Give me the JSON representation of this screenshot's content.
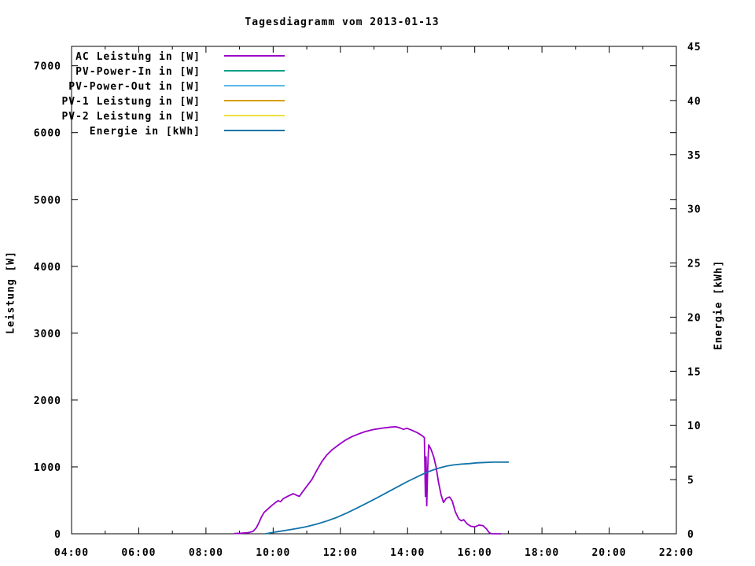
{
  "colors": {
    "background": "#ffffff",
    "axis": "#000000",
    "ac": "#9A00C8",
    "pv_power_in": "#009E86",
    "pv_power_out": "#5CB8E6",
    "pv1": "#D89E00",
    "pv2": "#EDE13F",
    "energie": "#1273AA"
  },
  "chart_data": {
    "type": "line",
    "title": "Tagesdiagramm vom 2013-01-13",
    "xlabel": "",
    "ylabel_left": "Leistung [W]",
    "ylabel_right": "Energie [kWh]",
    "grid": false,
    "legend_position": "top-left-inside",
    "x_axis": {
      "start_hour": 4,
      "end_hour": 22,
      "major_tick_hours": [
        4,
        6,
        8,
        10,
        12,
        14,
        16,
        18,
        20,
        22
      ],
      "major_tick_labels": [
        "04:00",
        "06:00",
        "08:00",
        "10:00",
        "12:00",
        "14:00",
        "16:00",
        "18:00",
        "20:00",
        "22:00"
      ],
      "minor_tick_every_hours": 1
    },
    "y_left": {
      "lim": [
        0,
        7290
      ],
      "ticks": [
        0,
        1000,
        2000,
        3000,
        4000,
        5000,
        6000,
        7000
      ]
    },
    "y_right": {
      "lim": [
        0,
        45
      ],
      "ticks": [
        0,
        5,
        10,
        15,
        20,
        25,
        30,
        35,
        40,
        45
      ]
    },
    "legend": [
      {
        "label": "AC Leistung in [W]",
        "color": "#9A00C8"
      },
      {
        "label": "PV-Power-In in [W]",
        "color": "#009E86"
      },
      {
        "label": "PV-Power-Out in [W]",
        "color": "#5CB8E6"
      },
      {
        "label": "PV-1 Leistung in [W]",
        "color": "#D89E00"
      },
      {
        "label": "PV-2 Leistung in [W]",
        "color": "#EDE13F"
      },
      {
        "label": "Energie in [kWh]",
        "color": "#1273AA"
      }
    ],
    "series": [
      {
        "name": "AC Leistung in [W]",
        "axis": "left",
        "color": "#9A00C8",
        "points": [
          [
            8.85,
            5
          ],
          [
            9.05,
            8
          ],
          [
            9.25,
            15
          ],
          [
            9.4,
            35
          ],
          [
            9.5,
            90
          ],
          [
            9.58,
            170
          ],
          [
            9.65,
            250
          ],
          [
            9.73,
            320
          ],
          [
            9.82,
            360
          ],
          [
            9.95,
            420
          ],
          [
            10.05,
            460
          ],
          [
            10.15,
            495
          ],
          [
            10.22,
            480
          ],
          [
            10.3,
            525
          ],
          [
            10.45,
            565
          ],
          [
            10.6,
            600
          ],
          [
            10.7,
            575
          ],
          [
            10.78,
            560
          ],
          [
            10.88,
            630
          ],
          [
            11.0,
            710
          ],
          [
            11.15,
            810
          ],
          [
            11.3,
            950
          ],
          [
            11.45,
            1080
          ],
          [
            11.6,
            1180
          ],
          [
            11.75,
            1255
          ],
          [
            11.95,
            1330
          ],
          [
            12.15,
            1400
          ],
          [
            12.35,
            1455
          ],
          [
            12.55,
            1495
          ],
          [
            12.75,
            1530
          ],
          [
            13.0,
            1560
          ],
          [
            13.25,
            1580
          ],
          [
            13.5,
            1595
          ],
          [
            13.65,
            1600
          ],
          [
            13.78,
            1583
          ],
          [
            13.88,
            1562
          ],
          [
            13.98,
            1578
          ],
          [
            14.12,
            1550
          ],
          [
            14.28,
            1515
          ],
          [
            14.42,
            1472
          ],
          [
            14.5,
            1438
          ],
          [
            14.53,
            560
          ],
          [
            14.55,
            1150
          ],
          [
            14.57,
            420
          ],
          [
            14.6,
            1000
          ],
          [
            14.63,
            1330
          ],
          [
            14.7,
            1262
          ],
          [
            14.78,
            1150
          ],
          [
            14.85,
            1000
          ],
          [
            14.92,
            775
          ],
          [
            15.0,
            580
          ],
          [
            15.07,
            468
          ],
          [
            15.15,
            530
          ],
          [
            15.25,
            550
          ],
          [
            15.33,
            492
          ],
          [
            15.42,
            330
          ],
          [
            15.52,
            225
          ],
          [
            15.6,
            193
          ],
          [
            15.67,
            210
          ],
          [
            15.77,
            150
          ],
          [
            15.88,
            113
          ],
          [
            16.0,
            103
          ],
          [
            16.13,
            130
          ],
          [
            16.25,
            120
          ],
          [
            16.35,
            72
          ],
          [
            16.43,
            18
          ],
          [
            16.5,
            0
          ],
          [
            16.78,
            0
          ]
        ]
      },
      {
        "name": "Energie in [kWh]",
        "axis": "right",
        "color": "#1273AA",
        "points": [
          [
            9.77,
            0
          ],
          [
            9.95,
            0.1
          ],
          [
            10.15,
            0.2
          ],
          [
            10.4,
            0.33
          ],
          [
            10.7,
            0.48
          ],
          [
            11.0,
            0.66
          ],
          [
            11.3,
            0.9
          ],
          [
            11.6,
            1.18
          ],
          [
            11.9,
            1.52
          ],
          [
            12.2,
            1.93
          ],
          [
            12.5,
            2.38
          ],
          [
            12.8,
            2.85
          ],
          [
            13.1,
            3.33
          ],
          [
            13.4,
            3.83
          ],
          [
            13.7,
            4.33
          ],
          [
            14.0,
            4.83
          ],
          [
            14.3,
            5.28
          ],
          [
            14.55,
            5.65
          ],
          [
            14.75,
            5.88
          ],
          [
            14.95,
            6.08
          ],
          [
            15.15,
            6.24
          ],
          [
            15.35,
            6.35
          ],
          [
            15.6,
            6.43
          ],
          [
            15.85,
            6.48
          ],
          [
            16.05,
            6.55
          ],
          [
            16.3,
            6.58
          ],
          [
            16.55,
            6.61
          ],
          [
            17.0,
            6.62
          ]
        ]
      }
    ]
  }
}
